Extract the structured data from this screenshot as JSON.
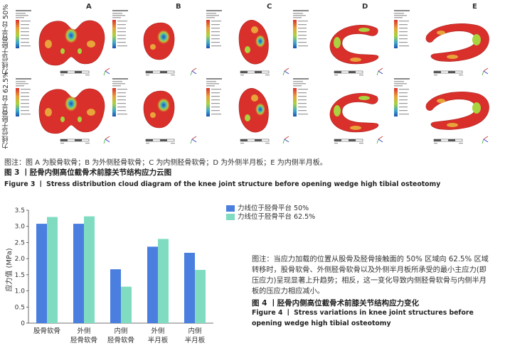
{
  "figure3": {
    "column_labels": [
      "A",
      "B",
      "C",
      "D",
      "E"
    ],
    "row_labels": [
      "力线位于胫骨平台 50%",
      "力线位于胫骨平台 62.5%"
    ],
    "note": "图注：图 A 为股骨软骨；B 为外侧胫骨软骨；C 为内侧胫骨软骨；D 为外侧半月板；E 为内侧半月板。",
    "caption_zh": "图 3 丨胫骨内侧高位截骨术前膝关节结构应力云图",
    "caption_en": "Figure 3 丨 Stress distribution cloud diagram of the knee joint structure before opening wedge high tibial osteotomy",
    "colors": {
      "stress_high": "#d9302b",
      "stress_mid_high": "#e8a33a",
      "stress_mid": "#a9d33f",
      "stress_low": "#3da7c9",
      "stress_lowest": "#1f4fb0"
    }
  },
  "chart_data": {
    "type": "bar",
    "categories": [
      "股骨软骨",
      "外侧\n胫骨软骨",
      "内侧\n胫骨软骨",
      "外侧\n半月板",
      "内侧\n半月板"
    ],
    "series": [
      {
        "name": "力线位于胫骨平台 50%",
        "color": "#4a7fe0",
        "values": [
          3.08,
          3.08,
          1.67,
          2.37,
          2.18
        ]
      },
      {
        "name": "力线位于胫骨平台 62.5%",
        "color": "#7fdcc1",
        "values": [
          3.29,
          3.31,
          1.13,
          2.61,
          1.65
        ]
      }
    ],
    "ylabel": "应力值 (MPa)",
    "ylim": [
      0,
      3.5
    ],
    "yticks": [
      0,
      0.5,
      1.0,
      1.5,
      2.0,
      2.5,
      3.0,
      3.5
    ],
    "ytick_labels": [
      "0",
      "0.5",
      "1.0",
      "1.5",
      "2.0",
      "2.5",
      "3.0",
      "3.5"
    ],
    "legend_position": "top-right",
    "grid": false
  },
  "figure4": {
    "note": "图注：当应力加载的位置从股骨及胫骨接触面的 50% 区域向 62.5% 区域转移时，股骨软骨、外侧胫骨软骨以及外侧半月板所承受的最小主应力(即压应力)呈现显著上升趋势；相反，这一变化导致内侧胫骨软骨与内侧半月板的压应力相应减小。",
    "caption_zh": "图 4 丨胫骨内侧高位截骨术前膝关节结构应力变化",
    "caption_en": "Figure 4 丨 Stress variations in knee joint structures before opening wedge high tibial osteotomy"
  }
}
